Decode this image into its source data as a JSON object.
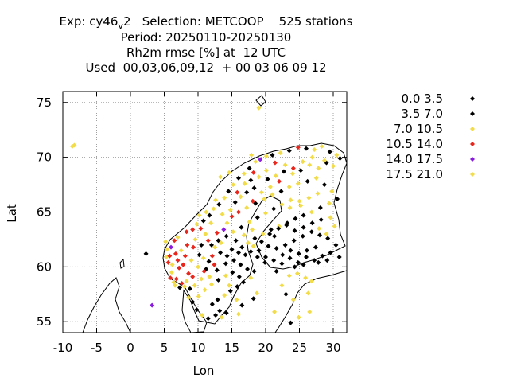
{
  "title": {
    "line1_prefix": "Exp: cy46",
    "line1_sub": "v",
    "line1_suffix": "2   Selection: METCOOP    525 stations",
    "line2": "Period: 20250110-20250130",
    "line3": "Rh2m rmse [%] at  12 UTC",
    "line4": "Used  00,03,06,09,12  + 00 03 06 09 12"
  },
  "chart_data": {
    "type": "scatter",
    "title": "Exp: cy46v2   Selection: METCOOP    525 stations",
    "xlabel": "Lon",
    "ylabel": "Lat",
    "xlim": [
      -10,
      32
    ],
    "ylim": [
      54,
      76
    ],
    "xticks": [
      "-10",
      "-5",
      "0",
      "5",
      "10",
      "15",
      "20",
      "25",
      "30"
    ],
    "yticks": [
      "55",
      "60",
      "65",
      "70",
      "75"
    ],
    "grid": true,
    "legend_position": "right",
    "classes": [
      {
        "name": "0.0 3.5",
        "color": "#000000"
      },
      {
        "name": "3.5 7.0",
        "color": "#000000"
      },
      {
        "name": "7.0 10.5",
        "color": "#f2dc4a"
      },
      {
        "name": "10.5 14.0",
        "color": "#e8261c"
      },
      {
        "name": "14.0 17.5",
        "color": "#8a1ae0"
      },
      {
        "name": "17.5 21.0",
        "color": "#f2dc4a"
      }
    ],
    "points": [
      [
        -8.6,
        71.0,
        2
      ],
      [
        -8.3,
        71.1,
        2
      ],
      [
        19.0,
        74.5,
        2
      ],
      [
        3.2,
        56.5,
        4
      ],
      [
        2.3,
        61.2,
        1
      ],
      [
        5.2,
        62.3,
        2
      ],
      [
        5.4,
        61.6,
        2
      ],
      [
        5.3,
        60.9,
        2
      ],
      [
        5.6,
        60.4,
        3
      ],
      [
        5.8,
        61.0,
        3
      ],
      [
        6.0,
        61.8,
        4
      ],
      [
        6.2,
        60.2,
        2
      ],
      [
        6.5,
        62.4,
        3
      ],
      [
        6.7,
        61.2,
        3
      ],
      [
        7.0,
        60.6,
        3
      ],
      [
        7.2,
        59.9,
        3
      ],
      [
        7.5,
        61.5,
        2
      ],
      [
        7.0,
        62.7,
        2
      ],
      [
        7.8,
        60.2,
        3
      ],
      [
        8.1,
        61.0,
        3
      ],
      [
        8.4,
        62.0,
        3
      ],
      [
        8.6,
        59.4,
        3
      ],
      [
        9.0,
        60.6,
        2
      ],
      [
        9.3,
        61.8,
        3
      ],
      [
        9.6,
        62.5,
        2
      ],
      [
        10.0,
        60.0,
        2
      ],
      [
        6.1,
        59.5,
        2
      ],
      [
        6.8,
        58.9,
        3
      ],
      [
        7.6,
        58.5,
        3
      ],
      [
        8.3,
        58.7,
        2
      ],
      [
        9.2,
        59.1,
        3
      ],
      [
        6.4,
        58.6,
        2
      ],
      [
        5.9,
        59.0,
        3
      ],
      [
        10.2,
        61.1,
        1
      ],
      [
        10.5,
        62.0,
        1
      ],
      [
        10.8,
        60.8,
        2
      ],
      [
        11.2,
        59.8,
        1
      ],
      [
        11.6,
        60.5,
        1
      ],
      [
        11.1,
        63.0,
        2
      ],
      [
        10.4,
        63.5,
        3
      ],
      [
        12.1,
        61.0,
        3
      ],
      [
        12.5,
        61.8,
        2
      ],
      [
        11.5,
        62.4,
        3
      ],
      [
        12.8,
        63.1,
        3
      ],
      [
        13.4,
        62.2,
        2
      ],
      [
        13.8,
        63.4,
        4
      ],
      [
        14.3,
        64.0,
        2
      ],
      [
        9.8,
        63.9,
        2
      ],
      [
        9.2,
        63.4,
        3
      ],
      [
        8.3,
        63.2,
        3
      ],
      [
        10.8,
        64.2,
        1
      ],
      [
        11.7,
        64.7,
        1
      ],
      [
        12.3,
        65.3,
        2
      ],
      [
        13.1,
        65.7,
        1
      ],
      [
        13.9,
        66.3,
        2
      ],
      [
        14.5,
        66.9,
        1
      ],
      [
        15.2,
        67.5,
        2
      ],
      [
        16.0,
        68.1,
        1
      ],
      [
        16.8,
        68.5,
        2
      ],
      [
        17.6,
        69.0,
        1
      ],
      [
        18.5,
        69.6,
        2
      ],
      [
        19.2,
        69.8,
        4
      ],
      [
        20.1,
        70.1,
        2
      ],
      [
        21.0,
        70.2,
        1
      ],
      [
        22.2,
        70.4,
        2
      ],
      [
        23.5,
        70.6,
        1
      ],
      [
        24.8,
        70.9,
        3
      ],
      [
        26.0,
        70.8,
        1
      ],
      [
        27.2,
        70.7,
        2
      ],
      [
        28.3,
        71.0,
        2
      ],
      [
        29.5,
        70.5,
        1
      ],
      [
        30.5,
        70.2,
        2
      ],
      [
        31.0,
        69.9,
        1
      ],
      [
        29.0,
        69.5,
        1
      ],
      [
        27.8,
        69.0,
        2
      ],
      [
        26.5,
        69.3,
        2
      ],
      [
        25.2,
        68.8,
        1
      ],
      [
        24.0,
        68.5,
        2
      ],
      [
        22.7,
        68.7,
        1
      ],
      [
        21.5,
        68.3,
        2
      ],
      [
        20.3,
        68.0,
        1
      ],
      [
        19.0,
        68.2,
        2
      ],
      [
        17.8,
        67.9,
        1
      ],
      [
        18.3,
        67.2,
        1
      ],
      [
        17.2,
        66.8,
        1
      ],
      [
        16.3,
        66.4,
        2
      ],
      [
        15.5,
        65.9,
        1
      ],
      [
        14.8,
        65.2,
        2
      ],
      [
        16.0,
        65.0,
        3
      ],
      [
        17.2,
        65.4,
        2
      ],
      [
        18.5,
        65.8,
        1
      ],
      [
        19.8,
        66.2,
        2
      ],
      [
        21.0,
        66.6,
        2
      ],
      [
        22.3,
        66.9,
        1
      ],
      [
        23.5,
        67.3,
        2
      ],
      [
        24.8,
        67.6,
        2
      ],
      [
        26.2,
        67.8,
        1
      ],
      [
        27.5,
        68.1,
        2
      ],
      [
        28.7,
        67.5,
        1
      ],
      [
        29.8,
        66.9,
        2
      ],
      [
        30.6,
        66.2,
        1
      ],
      [
        29.4,
        65.8,
        2
      ],
      [
        28.1,
        65.4,
        1
      ],
      [
        26.8,
        65.0,
        2
      ],
      [
        25.6,
        64.7,
        1
      ],
      [
        24.4,
        64.4,
        1
      ],
      [
        23.2,
        64.0,
        1
      ],
      [
        22.0,
        63.7,
        2
      ],
      [
        20.8,
        63.4,
        1
      ],
      [
        19.6,
        63.0,
        2
      ],
      [
        18.4,
        62.6,
        1
      ],
      [
        17.4,
        62.2,
        2
      ],
      [
        16.5,
        61.8,
        1
      ],
      [
        17.8,
        61.4,
        1
      ],
      [
        18.8,
        60.9,
        1
      ],
      [
        19.9,
        60.4,
        1
      ],
      [
        21.2,
        60.6,
        1
      ],
      [
        22.4,
        60.3,
        1
      ],
      [
        23.6,
        60.8,
        1
      ],
      [
        24.8,
        60.4,
        1
      ],
      [
        26.0,
        60.9,
        1
      ],
      [
        27.2,
        60.6,
        1
      ],
      [
        28.4,
        61.0,
        1
      ],
      [
        29.6,
        61.3,
        1
      ],
      [
        30.4,
        62.0,
        1
      ],
      [
        29.2,
        62.6,
        1
      ],
      [
        28.0,
        62.9,
        1
      ],
      [
        26.8,
        63.2,
        1
      ],
      [
        25.5,
        62.8,
        1
      ],
      [
        24.2,
        62.4,
        1
      ],
      [
        22.9,
        62.0,
        1
      ],
      [
        21.6,
        61.7,
        1
      ],
      [
        20.4,
        61.9,
        1
      ],
      [
        19.4,
        62.3,
        1
      ],
      [
        20.6,
        63.0,
        1
      ],
      [
        21.9,
        63.5,
        1
      ],
      [
        23.1,
        63.8,
        1
      ],
      [
        24.3,
        63.3,
        1
      ],
      [
        25.6,
        63.6,
        1
      ],
      [
        26.9,
        64.0,
        1
      ],
      [
        28.2,
        64.3,
        1
      ],
      [
        29.6,
        64.5,
        2
      ],
      [
        30.2,
        63.7,
        2
      ],
      [
        27.4,
        61.8,
        1
      ],
      [
        26.1,
        61.5,
        1
      ],
      [
        24.9,
        61.2,
        1
      ],
      [
        23.7,
        61.5,
        1
      ],
      [
        22.5,
        61.1,
        1
      ],
      [
        21.3,
        62.8,
        1
      ],
      [
        25.0,
        66.0,
        2
      ],
      [
        26.4,
        66.3,
        2
      ],
      [
        27.7,
        66.7,
        2
      ],
      [
        23.7,
        66.1,
        2
      ],
      [
        22.4,
        65.7,
        2
      ],
      [
        21.2,
        65.3,
        1
      ],
      [
        20.0,
        64.9,
        2
      ],
      [
        18.8,
        64.5,
        1
      ],
      [
        17.6,
        64.1,
        2
      ],
      [
        16.4,
        63.6,
        1
      ],
      [
        15.2,
        63.2,
        2
      ],
      [
        14.2,
        62.8,
        1
      ],
      [
        13.0,
        62.4,
        1
      ],
      [
        12.0,
        62.0,
        1
      ],
      [
        15.6,
        62.4,
        1
      ],
      [
        16.8,
        62.9,
        2
      ],
      [
        18.0,
        63.4,
        2
      ],
      [
        13.3,
        61.3,
        1
      ],
      [
        14.3,
        61.0,
        1
      ],
      [
        15.3,
        60.6,
        1
      ],
      [
        16.3,
        60.2,
        1
      ],
      [
        17.3,
        59.8,
        1
      ],
      [
        18.3,
        59.6,
        1
      ],
      [
        17.8,
        59.0,
        2
      ],
      [
        16.7,
        58.6,
        1
      ],
      [
        15.8,
        58.2,
        1
      ],
      [
        14.8,
        57.8,
        1
      ],
      [
        13.9,
        57.4,
        2
      ],
      [
        12.9,
        57.0,
        1
      ],
      [
        12.1,
        56.6,
        1
      ],
      [
        13.2,
        56.0,
        1
      ],
      [
        14.2,
        55.8,
        1
      ],
      [
        13.5,
        55.4,
        2
      ],
      [
        12.6,
        55.6,
        1
      ],
      [
        11.5,
        55.3,
        1
      ],
      [
        10.6,
        55.6,
        2
      ],
      [
        9.8,
        56.1,
        1
      ],
      [
        9.2,
        56.8,
        1
      ],
      [
        8.6,
        57.2,
        2
      ],
      [
        10.1,
        57.3,
        2
      ],
      [
        11.0,
        57.9,
        2
      ],
      [
        12.0,
        58.4,
        2
      ],
      [
        13.0,
        58.8,
        1
      ],
      [
        14.1,
        59.2,
        2
      ],
      [
        15.1,
        59.5,
        1
      ],
      [
        16.1,
        59.1,
        1
      ],
      [
        14.6,
        58.3,
        2
      ],
      [
        15.7,
        57.0,
        2
      ],
      [
        16.5,
        56.5,
        1
      ],
      [
        16.0,
        55.7,
        2
      ],
      [
        12.8,
        59.7,
        1
      ],
      [
        11.7,
        59.1,
        2
      ],
      [
        18.7,
        57.6,
        2
      ],
      [
        18.2,
        57.1,
        1
      ],
      [
        22.4,
        58.3,
        2
      ],
      [
        23.5,
        59.2,
        2
      ],
      [
        24.7,
        59.4,
        2
      ],
      [
        25.9,
        59.0,
        2
      ],
      [
        26.8,
        58.7,
        2
      ],
      [
        21.6,
        59.6,
        1
      ],
      [
        23.0,
        57.5,
        1
      ],
      [
        24.1,
        57.0,
        2
      ],
      [
        26.3,
        57.6,
        2
      ],
      [
        21.3,
        55.9,
        2
      ],
      [
        24.9,
        55.4,
        2
      ],
      [
        23.7,
        54.9,
        1
      ],
      [
        26.5,
        55.9,
        2
      ],
      [
        12.4,
        60.2,
        3
      ],
      [
        11.9,
        64.0,
        2
      ],
      [
        13.6,
        64.8,
        2
      ],
      [
        15.0,
        64.6,
        3
      ],
      [
        18.1,
        66.0,
        3
      ],
      [
        19.4,
        66.8,
        2
      ],
      [
        20.7,
        67.3,
        2
      ],
      [
        22.0,
        67.8,
        3
      ],
      [
        24.1,
        69.0,
        3
      ],
      [
        25.5,
        69.6,
        2
      ],
      [
        26.9,
        70.0,
        2
      ],
      [
        22.9,
        69.3,
        2
      ],
      [
        21.4,
        69.5,
        3
      ],
      [
        20.1,
        68.8,
        2
      ],
      [
        18.2,
        68.6,
        3
      ],
      [
        28.7,
        69.7,
        2
      ],
      [
        30.0,
        69.2,
        2
      ],
      [
        17.9,
        70.2,
        2
      ],
      [
        14.6,
        68.6,
        2
      ],
      [
        13.3,
        68.2,
        2
      ],
      [
        12.6,
        66.1,
        2
      ],
      [
        11.2,
        65.0,
        2
      ],
      [
        10.2,
        64.7,
        2
      ],
      [
        15.8,
        66.8,
        3
      ],
      [
        16.9,
        67.6,
        2
      ],
      [
        23.6,
        65.4,
        2
      ],
      [
        25.2,
        65.6,
        2
      ],
      [
        27.9,
        63.5,
        2
      ],
      [
        29.0,
        63.0,
        2
      ],
      [
        24.3,
        60.0,
        1
      ],
      [
        25.6,
        60.2,
        1
      ],
      [
        27.8,
        60.4,
        1
      ],
      [
        29.1,
        60.6,
        1
      ],
      [
        30.9,
        60.9,
        1
      ],
      [
        17.0,
        61.1,
        1
      ],
      [
        18.2,
        61.9,
        2
      ],
      [
        19.0,
        61.5,
        1
      ],
      [
        20.0,
        60.9,
        1
      ],
      [
        15.0,
        61.6,
        1
      ],
      [
        16.0,
        61.3,
        1
      ],
      [
        14.1,
        60.3,
        1
      ],
      [
        9.5,
        58.3,
        2
      ],
      [
        8.8,
        58.0,
        1
      ],
      [
        8.0,
        58.2,
        2
      ],
      [
        7.3,
        58.1,
        1
      ],
      [
        6.6,
        58.3,
        2
      ],
      [
        10.9,
        59.6,
        3
      ],
      [
        10.5,
        58.9,
        2
      ]
    ]
  }
}
